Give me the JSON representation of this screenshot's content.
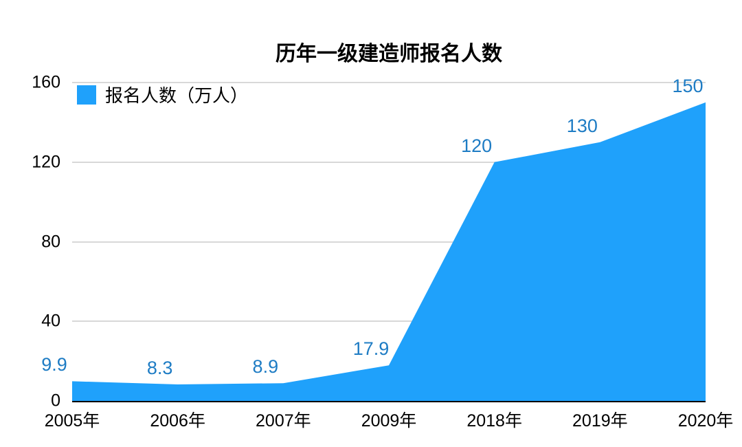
{
  "chart_data": {
    "type": "area",
    "title": "历年一级建造师报名人数",
    "legend": "报名人数（万人）",
    "legend_position": "top-left",
    "categories": [
      "2005年",
      "2006年",
      "2007年",
      "2009年",
      "2018年",
      "2019年",
      "2020年"
    ],
    "values": [
      9.9,
      8.3,
      8.9,
      17.9,
      120,
      130,
      150
    ],
    "data_labels": [
      "9.9",
      "8.3",
      "8.9",
      "17.9",
      "120",
      "130",
      "150"
    ],
    "xlabel": "",
    "ylabel": "",
    "ylim": [
      0,
      160
    ],
    "yticks": [
      0,
      40,
      80,
      120,
      160
    ],
    "grid": "horizontal",
    "colors": {
      "area_fill": "#1FA1FB",
      "data_label": "#1E7CC4",
      "gridline": "#D8D8D8",
      "axis_line": "#000000",
      "text": "#000000",
      "background": "#FFFFFF"
    }
  }
}
